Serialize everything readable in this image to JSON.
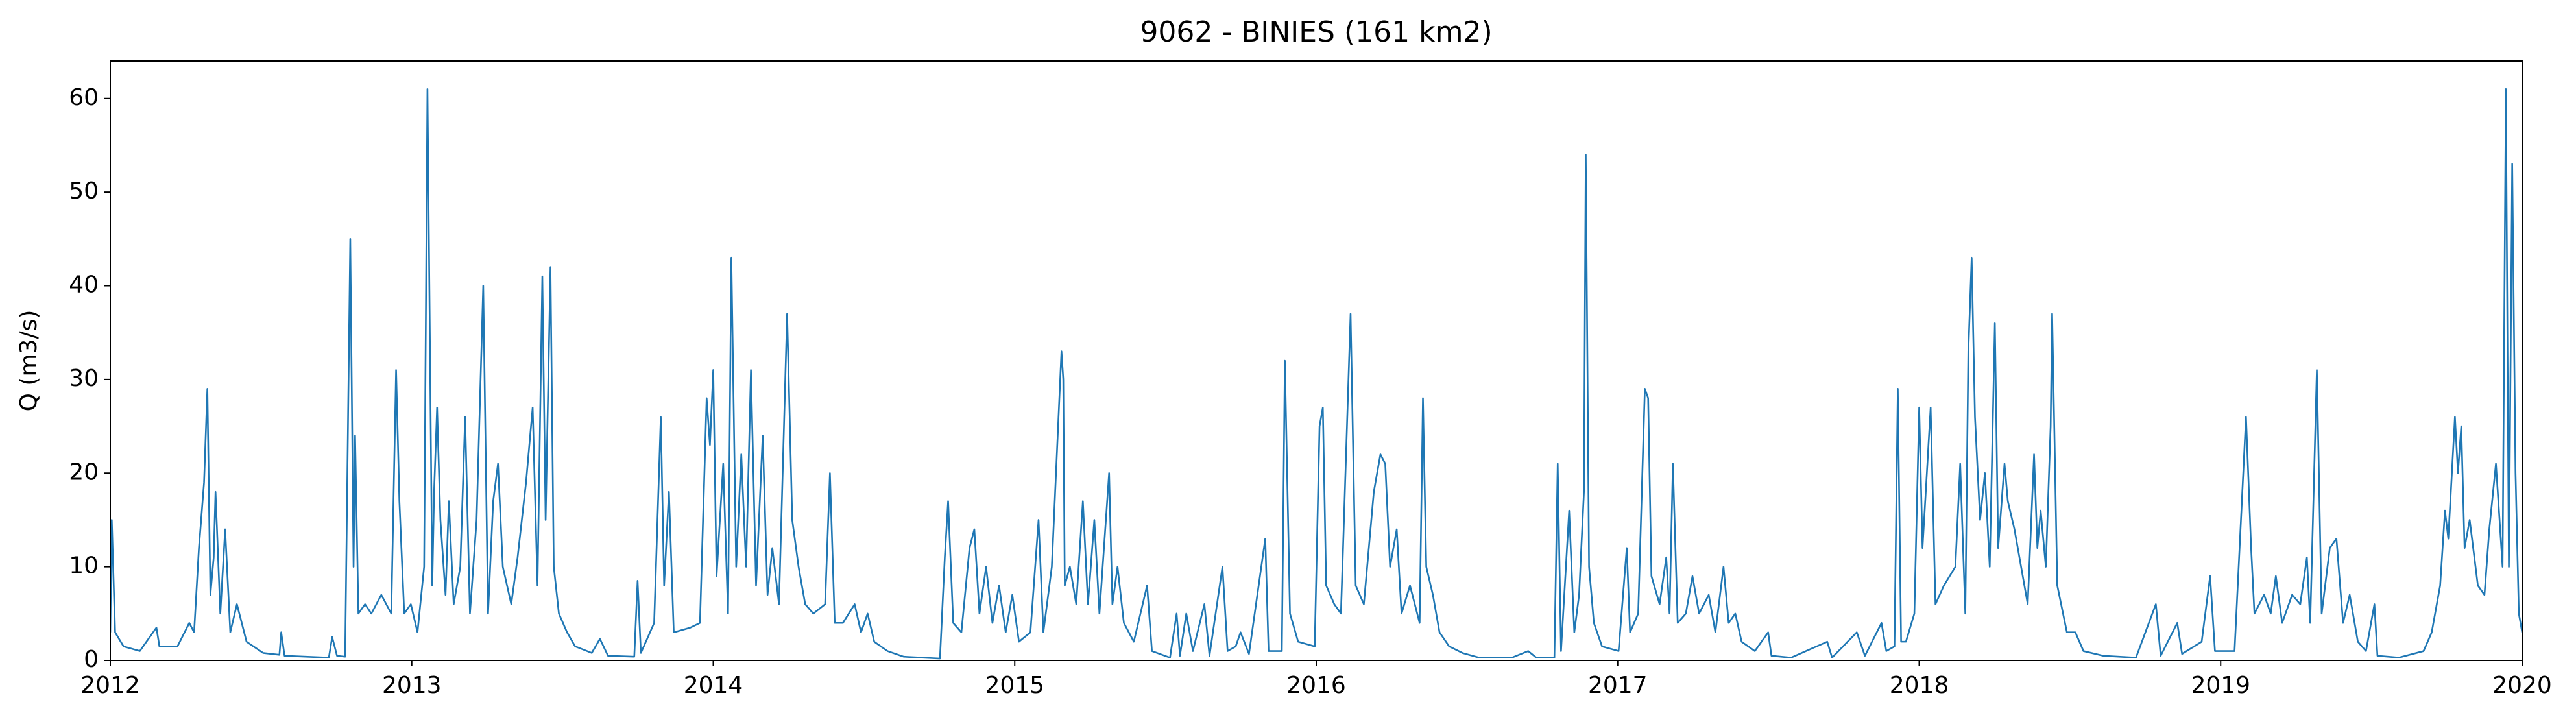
{
  "chart_data": {
    "type": "line",
    "title": "9062 - BINIES (161 km2)",
    "y_label": "Q (m3/s)",
    "color": "#1f77b4",
    "xlim": [
      2012,
      2020
    ],
    "xticks": [
      2012,
      2013,
      2014,
      2015,
      2016,
      2017,
      2018,
      2019,
      2020
    ],
    "ylim": [
      0,
      64
    ],
    "yticks": [
      0,
      10,
      20,
      30,
      40,
      50,
      60
    ],
    "x": [
      2012.0,
      2012.005,
      2012.016,
      2012.044,
      2012.098,
      2012.153,
      2012.163,
      2012.223,
      2012.262,
      2012.278,
      2012.294,
      2012.311,
      2012.322,
      2012.332,
      2012.343,
      2012.349,
      2012.365,
      2012.381,
      2012.398,
      2012.42,
      2012.452,
      2012.507,
      2012.561,
      2012.567,
      2012.578,
      2012.725,
      2012.736,
      2012.752,
      2012.779,
      2012.796,
      2012.807,
      2012.812,
      2012.823,
      2012.845,
      2012.866,
      2012.899,
      2012.932,
      2012.948,
      2012.959,
      2012.975,
      2012.997,
      2013.019,
      2013.041,
      2013.052,
      2013.068,
      2013.074,
      2013.084,
      2013.095,
      2013.112,
      2013.123,
      2013.139,
      2013.161,
      2013.177,
      2013.193,
      2013.215,
      2013.237,
      2013.253,
      2013.27,
      2013.286,
      2013.302,
      2013.33,
      2013.351,
      2013.379,
      2013.401,
      2013.417,
      2013.433,
      2013.444,
      2013.46,
      2013.471,
      2013.488,
      2013.515,
      2013.542,
      2013.597,
      2013.624,
      2013.651,
      2013.738,
      2013.749,
      2013.76,
      2013.804,
      2013.826,
      2013.837,
      2013.853,
      2013.869,
      2013.924,
      2013.956,
      2013.978,
      2013.989,
      2014.0,
      2014.011,
      2014.033,
      2014.049,
      2014.06,
      2014.076,
      2014.093,
      2014.109,
      2014.125,
      2014.142,
      2014.164,
      2014.18,
      2014.196,
      2014.218,
      2014.245,
      2014.262,
      2014.283,
      2014.305,
      2014.332,
      2014.371,
      2014.387,
      2014.403,
      2014.43,
      2014.469,
      2014.49,
      2014.512,
      2014.534,
      2014.578,
      2014.632,
      2014.752,
      2014.768,
      2014.779,
      2014.796,
      2014.823,
      2014.85,
      2014.866,
      2014.883,
      2014.905,
      2014.926,
      2014.948,
      2014.97,
      2014.992,
      2015.014,
      2015.052,
      2015.079,
      2015.095,
      2015.123,
      2015.155,
      2015.161,
      2015.166,
      2015.183,
      2015.204,
      2015.226,
      2015.243,
      2015.264,
      2015.281,
      2015.313,
      2015.324,
      2015.341,
      2015.362,
      2015.395,
      2015.439,
      2015.455,
      2015.515,
      2015.537,
      2015.548,
      2015.569,
      2015.591,
      2015.629,
      2015.646,
      2015.689,
      2015.706,
      2015.733,
      2015.749,
      2015.777,
      2015.831,
      2015.842,
      2015.886,
      2015.896,
      2015.913,
      2015.94,
      2015.995,
      2016.011,
      2016.022,
      2016.033,
      2016.06,
      2016.082,
      2016.114,
      2016.131,
      2016.158,
      2016.191,
      2016.213,
      2016.229,
      2016.245,
      2016.267,
      2016.283,
      2016.311,
      2016.343,
      2016.354,
      2016.365,
      2016.387,
      2016.409,
      2016.441,
      2016.485,
      2016.54,
      2016.649,
      2016.703,
      2016.73,
      2016.79,
      2016.801,
      2016.812,
      2016.839,
      2016.856,
      2016.872,
      2016.888,
      2016.894,
      2016.905,
      2016.921,
      2016.948,
      2017.003,
      2017.03,
      2017.041,
      2017.068,
      2017.09,
      2017.101,
      2017.112,
      2017.139,
      2017.161,
      2017.172,
      2017.183,
      2017.199,
      2017.226,
      2017.248,
      2017.27,
      2017.302,
      2017.324,
      2017.351,
      2017.368,
      2017.39,
      2017.411,
      2017.455,
      2017.499,
      2017.51,
      2017.575,
      2017.695,
      2017.711,
      2017.793,
      2017.82,
      2017.875,
      2017.891,
      2017.918,
      2017.929,
      2017.94,
      2017.956,
      2017.984,
      2018.0,
      2018.011,
      2018.038,
      2018.054,
      2018.082,
      2018.12,
      2018.136,
      2018.153,
      2018.163,
      2018.174,
      2018.185,
      2018.202,
      2018.218,
      2018.234,
      2018.251,
      2018.262,
      2018.283,
      2018.294,
      2018.316,
      2018.338,
      2018.36,
      2018.381,
      2018.392,
      2018.403,
      2018.42,
      2018.436,
      2018.441,
      2018.458,
      2018.49,
      2018.518,
      2018.545,
      2018.61,
      2018.719,
      2018.785,
      2018.801,
      2018.856,
      2018.872,
      2018.937,
      2018.965,
      2018.981,
      2019.046,
      2019.084,
      2019.101,
      2019.112,
      2019.144,
      2019.166,
      2019.183,
      2019.204,
      2019.237,
      2019.264,
      2019.286,
      2019.297,
      2019.319,
      2019.335,
      2019.362,
      2019.384,
      2019.406,
      2019.428,
      2019.455,
      2019.482,
      2019.51,
      2019.52,
      2019.591,
      2019.673,
      2019.7,
      2019.728,
      2019.744,
      2019.755,
      2019.777,
      2019.787,
      2019.798,
      2019.809,
      2019.826,
      2019.853,
      2019.875,
      2019.891,
      2019.913,
      2019.935,
      2019.946,
      2019.956,
      2019.967,
      2019.978,
      2019.989,
      2020.0
    ],
    "values": [
      3,
      15,
      3,
      1.5,
      1,
      3.5,
      1.5,
      1.5,
      4,
      3,
      12,
      19,
      29,
      7,
      11,
      18,
      5,
      14,
      3,
      6,
      2,
      0.8,
      0.6,
      3,
      0.5,
      0.3,
      2.5,
      0.5,
      0.4,
      45,
      10,
      24,
      5,
      6,
      5,
      7,
      5,
      31,
      17,
      5,
      6,
      3,
      10,
      61,
      8,
      18,
      27,
      15,
      7,
      17,
      6,
      10,
      26,
      5,
      15,
      40,
      5,
      17,
      21,
      10,
      6,
      11,
      19,
      27,
      8,
      41,
      15,
      42,
      10,
      5,
      3,
      1.5,
      0.8,
      2.3,
      0.5,
      0.4,
      8.5,
      0.8,
      4,
      26,
      8,
      18,
      3,
      3.5,
      4,
      28,
      23,
      31,
      9,
      21,
      5,
      43,
      10,
      22,
      10,
      31,
      8,
      24,
      7,
      12,
      6,
      37,
      15,
      10,
      6,
      5,
      6,
      20,
      4,
      4,
      6,
      3,
      5,
      2,
      1,
      0.4,
      0.2,
      11,
      17,
      4,
      3,
      12,
      14,
      5,
      10,
      4,
      8,
      3,
      7,
      2,
      3,
      15,
      3,
      10,
      33,
      30,
      8,
      10,
      6,
      17,
      6,
      15,
      5,
      20,
      6,
      10,
      4,
      2,
      8,
      1,
      0.3,
      5,
      0.5,
      5,
      1,
      6,
      0.5,
      10,
      1,
      1.5,
      3,
      0.7,
      13,
      1,
      1,
      32,
      5,
      2,
      1.5,
      25,
      27,
      8,
      6,
      5,
      37,
      8,
      6,
      18,
      22,
      21,
      10,
      14,
      5,
      8,
      4,
      28,
      10,
      7,
      3,
      1.5,
      0.8,
      0.3,
      0.3,
      1,
      0.3,
      0.3,
      21,
      1,
      16,
      3,
      7,
      18,
      54,
      10,
      4,
      1.5,
      1,
      12,
      3,
      5,
      29,
      28,
      9,
      6,
      11,
      5,
      21,
      4,
      5,
      9,
      5,
      7,
      3,
      10,
      4,
      5,
      2,
      1,
      3,
      0.5,
      0.3,
      2,
      0.3,
      3,
      0.5,
      4,
      1,
      1.5,
      29,
      2,
      2,
      5,
      27,
      12,
      27,
      6,
      8,
      10,
      21,
      5,
      33,
      43,
      26,
      15,
      20,
      10,
      36,
      12,
      21,
      17,
      14,
      10,
      6,
      22,
      12,
      16,
      10,
      25,
      37,
      8,
      3,
      3,
      1,
      0.5,
      0.3,
      6,
      0.5,
      4,
      0.7,
      2,
      9,
      1,
      1,
      26,
      12,
      5,
      7,
      5,
      9,
      4,
      7,
      6,
      11,
      4,
      31,
      5,
      12,
      13,
      4,
      7,
      2,
      1,
      6,
      0.5,
      0.3,
      1,
      3,
      8,
      16,
      13,
      26,
      20,
      25,
      12,
      15,
      8,
      7,
      14,
      21,
      10,
      61,
      10,
      53,
      20,
      5,
      3
    ]
  }
}
